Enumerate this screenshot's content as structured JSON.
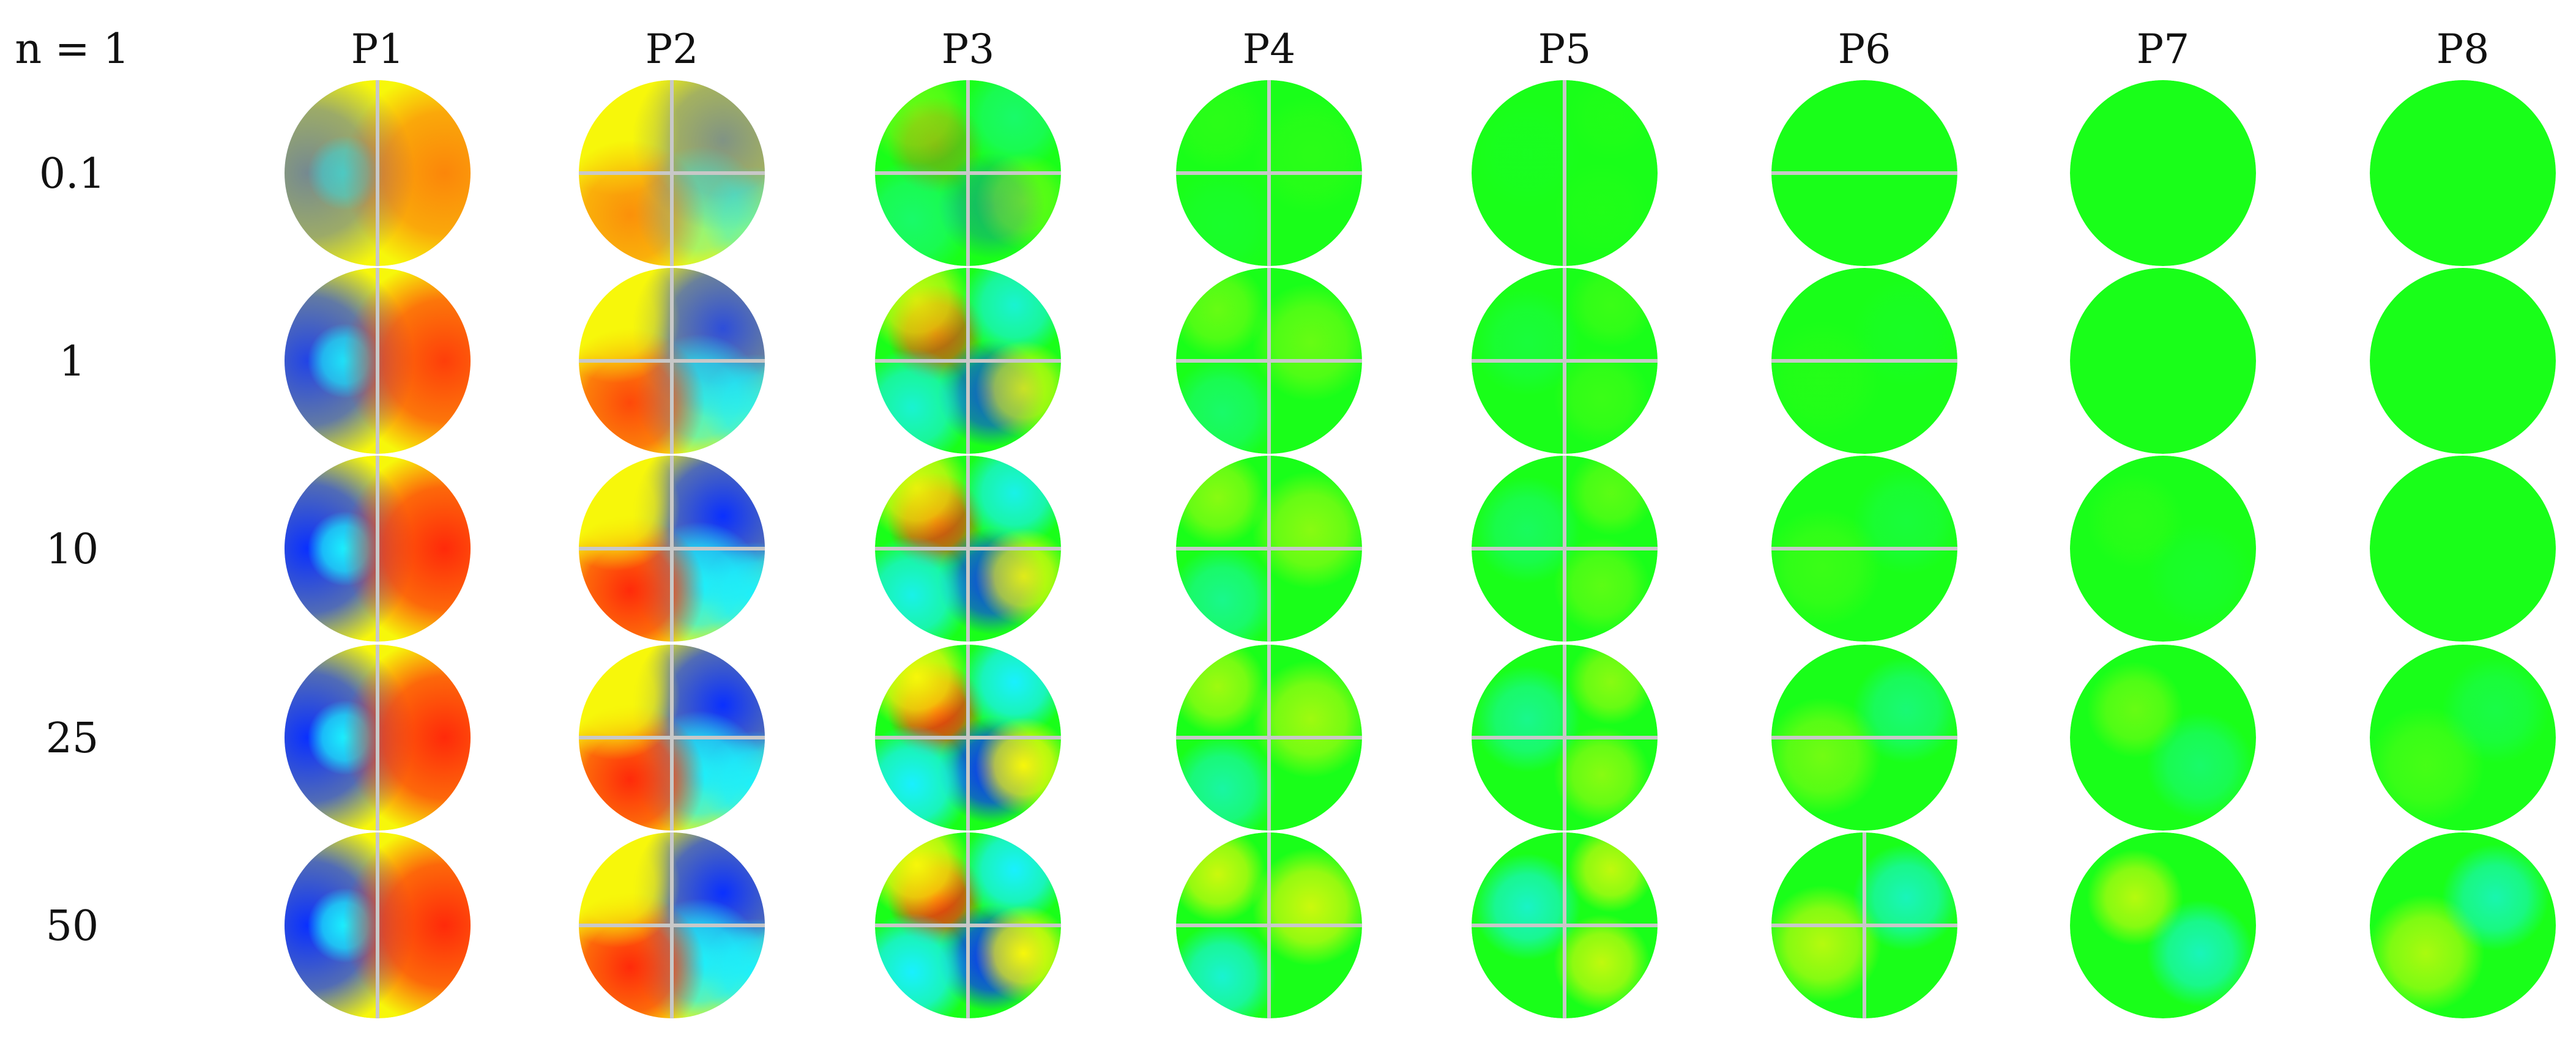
{
  "corner_label": "n = 1",
  "columns": [
    "P1",
    "P2",
    "P3",
    "P4",
    "P5",
    "P6",
    "P7",
    "P8"
  ],
  "rows": [
    "0.1",
    "1",
    "10",
    "25",
    "50"
  ],
  "colors": {
    "blue": "#0a30ff",
    "cyan": "#19f0ff",
    "green": "#19ff19",
    "yellow": "#f7f70a",
    "red": "#ff2a0a",
    "crosshair": "#c8c8c8"
  }
}
